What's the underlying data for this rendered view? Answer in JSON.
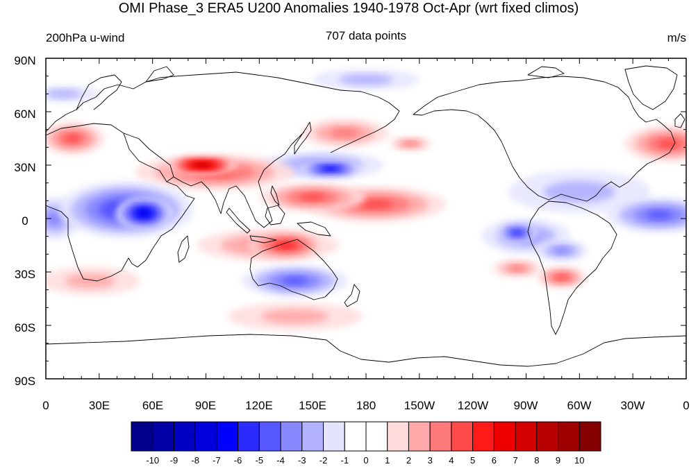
{
  "title": "OMI Phase_3 ERA5 U200 Anomalies 1940-1978 Oct-Apr (wrt fixed climos)",
  "left_label": "200hPa u-wind",
  "center_label": "707 data points",
  "right_label": "m/s",
  "lat_labels": [
    "90N",
    "60N",
    "30N",
    "0",
    "30S",
    "60S",
    "90S"
  ],
  "lon_labels": [
    "0",
    "30E",
    "60E",
    "90E",
    "120E",
    "150E",
    "180",
    "150W",
    "120W",
    "90W",
    "60W",
    "30W",
    "0"
  ],
  "colorbar": {
    "labels": [
      "-10",
      "-9",
      "-8",
      "-7",
      "-6",
      "-5",
      "-4",
      "-3",
      "-2",
      "-1",
      "0",
      "1",
      "2",
      "3",
      "4",
      "5",
      "6",
      "7",
      "8",
      "9",
      "10"
    ],
    "colors": [
      "#00008b",
      "#0000a6",
      "#0000c2",
      "#0000dd",
      "#0000ff",
      "#2b2bff",
      "#5858ff",
      "#8888ff",
      "#b3b3ff",
      "#e4e4ff",
      "#ffffff",
      "#ffffff",
      "#ffdcdc",
      "#ffaaaa",
      "#ff7b7b",
      "#ff4a4a",
      "#ff1a1a",
      "#ee0000",
      "#d50000",
      "#b80000",
      "#9e0000",
      "#850000"
    ]
  },
  "anomaly_regions": [
    {
      "lon": 88,
      "lat": 30,
      "value": 8,
      "rlon": 20,
      "rlat": 5
    },
    {
      "lon": 95,
      "lat": 26,
      "value": 3.5,
      "rlon": 45,
      "rlat": 10
    },
    {
      "lon": 150,
      "lat": 12,
      "value": 4,
      "rlon": 30,
      "rlat": 8
    },
    {
      "lon": 185,
      "lat": 8,
      "value": 3.5,
      "rlon": 40,
      "rlat": 10
    },
    {
      "lon": 135,
      "lat": -15,
      "value": 5,
      "rlon": 22,
      "rlat": 8
    },
    {
      "lon": 125,
      "lat": -15,
      "value": 3,
      "rlon": 40,
      "rlat": 9
    },
    {
      "lon": 168,
      "lat": 48,
      "value": 2.5,
      "rlon": 25,
      "rlat": 8
    },
    {
      "lon": 205,
      "lat": 42,
      "value": 2.5,
      "rlon": 12,
      "rlat": 4
    },
    {
      "lon": 265,
      "lat": -28,
      "value": 3,
      "rlon": 14,
      "rlat": 5
    },
    {
      "lon": 290,
      "lat": -33,
      "value": 3.5,
      "rlon": 14,
      "rlat": 6
    },
    {
      "lon": 350,
      "lat": 42,
      "value": 4,
      "rlon": 25,
      "rlat": 10
    },
    {
      "lon": 15,
      "lat": 45,
      "value": 4,
      "rlon": 18,
      "rlat": 9
    },
    {
      "lon": 25,
      "lat": -35,
      "value": 2,
      "rlon": 28,
      "rlat": 8
    },
    {
      "lon": 140,
      "lat": -55,
      "value": 2,
      "rlon": 38,
      "rlat": 8
    },
    {
      "lon": 160,
      "lat": 28,
      "value": -5.5,
      "rlon": 18,
      "rlat": 5
    },
    {
      "lon": 155,
      "lat": 30,
      "value": -3,
      "rlon": 35,
      "rlat": 8
    },
    {
      "lon": 55,
      "lat": 3,
      "value": -7,
      "rlon": 16,
      "rlat": 9
    },
    {
      "lon": 45,
      "lat": 5,
      "value": -4.5,
      "rlon": 38,
      "rlat": 16
    },
    {
      "lon": 5,
      "lat": 0,
      "value": -3,
      "rlon": 15,
      "rlat": 12
    },
    {
      "lon": 265,
      "lat": -8,
      "value": -5,
      "rlon": 12,
      "rlat": 6
    },
    {
      "lon": 270,
      "lat": -10,
      "value": -2.5,
      "rlon": 25,
      "rlat": 10
    },
    {
      "lon": 345,
      "lat": 2,
      "value": -3.5,
      "rlon": 30,
      "rlat": 10
    },
    {
      "lon": 140,
      "lat": -35,
      "value": -3.5,
      "rlon": 30,
      "rlat": 9
    },
    {
      "lon": 180,
      "lat": 78,
      "value": -1.5,
      "rlon": 30,
      "rlat": 6
    },
    {
      "lon": 300,
      "lat": 15,
      "value": -2,
      "rlon": 40,
      "rlat": 12
    },
    {
      "lon": 290,
      "lat": -18,
      "value": -3,
      "rlon": 15,
      "rlat": 6
    },
    {
      "lon": 10,
      "lat": 70,
      "value": -1.5,
      "rlon": 20,
      "rlat": 5
    }
  ]
}
